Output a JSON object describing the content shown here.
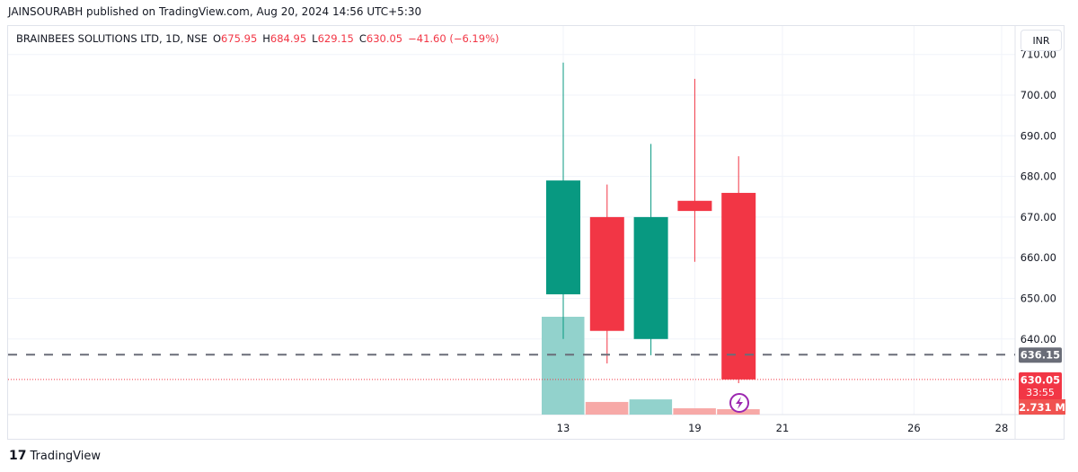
{
  "publisher_line": "JAINSOURABH published on TradingView.com, Aug 20, 2024 14:56 UTC+5:30",
  "legend": {
    "symbol": "BRAINBEES SOLUTIONS LTD, 1D, NSE",
    "o_label": "O",
    "o": "675.95",
    "h_label": "H",
    "h": "684.95",
    "l_label": "L",
    "l": "629.15",
    "c_label": "C",
    "c": "630.05",
    "change": "−41.60 (−6.19%)"
  },
  "currency": "INR",
  "brand": "TradingView",
  "colors": {
    "up": "#089981",
    "down": "#f23645",
    "up_volume": "#92d2cc",
    "down_volume": "#f7a9a7",
    "last_price_label": "#6a6d78"
  },
  "chart_data": {
    "type": "candlestick",
    "x_tick_labels": [
      "13",
      "19",
      "21",
      "26",
      "28"
    ],
    "y_ticks": [
      "640.00",
      "650.00",
      "660.00",
      "670.00",
      "680.00",
      "690.00",
      "700.00",
      "710.00"
    ],
    "ylim": [
      626,
      712
    ],
    "candles": [
      {
        "date": "13",
        "open": 651,
        "high": 708,
        "low": 640,
        "close": 679,
        "volume_m": 49.6
      },
      {
        "date": "14",
        "open": 670,
        "high": 678,
        "low": 634,
        "close": 642,
        "volume_m": 6.4
      },
      {
        "date": "16",
        "open": 640,
        "high": 688,
        "low": 636,
        "close": 670,
        "volume_m": 7.7
      },
      {
        "date": "19",
        "open": 674,
        "high": 704,
        "low": 659,
        "close": 671.5,
        "volume_m": 3.2
      },
      {
        "date": "20",
        "open": 675.95,
        "high": 684.95,
        "low": 629.15,
        "close": 630.05,
        "volume_m": 2.731
      }
    ],
    "price_line": {
      "value": "636.15"
    },
    "last_price": {
      "value": "630.05",
      "countdown": "33:55"
    },
    "last_volume": "2.731 M"
  }
}
